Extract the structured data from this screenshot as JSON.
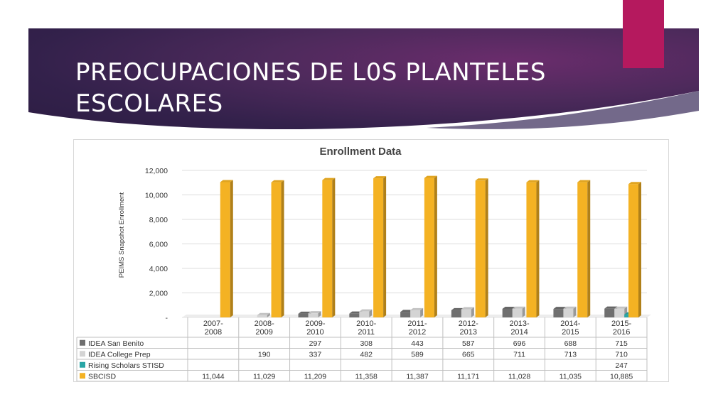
{
  "slide": {
    "title": "PREOCUPACIONES DE L0S PLANTELES ESCOLARES",
    "colors": {
      "banner": "#3a2450",
      "accent": "#b5195e"
    }
  },
  "chart_data": {
    "type": "bar",
    "title": "Enrollment Data",
    "ylabel": "PEIMS Snapshot Enrollment",
    "xlabel": "",
    "ylim": [
      0,
      12000
    ],
    "yticks": [
      "-",
      "2,000",
      "4,000",
      "6,000",
      "8,000",
      "10,000",
      "12,000"
    ],
    "categories": [
      [
        "2007-",
        "2008"
      ],
      [
        "2008-",
        "2009"
      ],
      [
        "2009-",
        "2010"
      ],
      [
        "2010-",
        "2011"
      ],
      [
        "2011-",
        "2012"
      ],
      [
        "2012-",
        "2013"
      ],
      [
        "2013-",
        "2014"
      ],
      [
        "2014-",
        "2015"
      ],
      [
        "2015-",
        "2016"
      ]
    ],
    "series": [
      {
        "name": "IDEA San Benito",
        "color": "#6f6f6f",
        "values": [
          null,
          null,
          297,
          308,
          443,
          587,
          696,
          688,
          715
        ],
        "labels": [
          "",
          "",
          "297",
          "308",
          "443",
          "587",
          "696",
          "688",
          "715"
        ]
      },
      {
        "name": "IDEA College Prep",
        "color": "#d4d4d4",
        "values": [
          null,
          190,
          337,
          482,
          589,
          665,
          711,
          713,
          710
        ],
        "labels": [
          "",
          "190",
          "337",
          "482",
          "589",
          "665",
          "711",
          "713",
          "710"
        ]
      },
      {
        "name": "Rising Scholars STISD",
        "color": "#2aa6a6",
        "values": [
          null,
          null,
          null,
          null,
          null,
          null,
          null,
          null,
          247
        ],
        "labels": [
          "",
          "",
          "",
          "",
          "",
          "",
          "",
          "",
          "247"
        ]
      },
      {
        "name": "SBCISD",
        "color": "#f4b223",
        "values": [
          11044,
          11029,
          11209,
          11358,
          11387,
          11171,
          11028,
          11035,
          10885
        ],
        "labels": [
          "11,044",
          "11,029",
          "11,209",
          "11,358",
          "11,387",
          "11,171",
          "11,028",
          "11,035",
          "10,885"
        ]
      }
    ],
    "grid": true,
    "legend": "data table below chart"
  }
}
